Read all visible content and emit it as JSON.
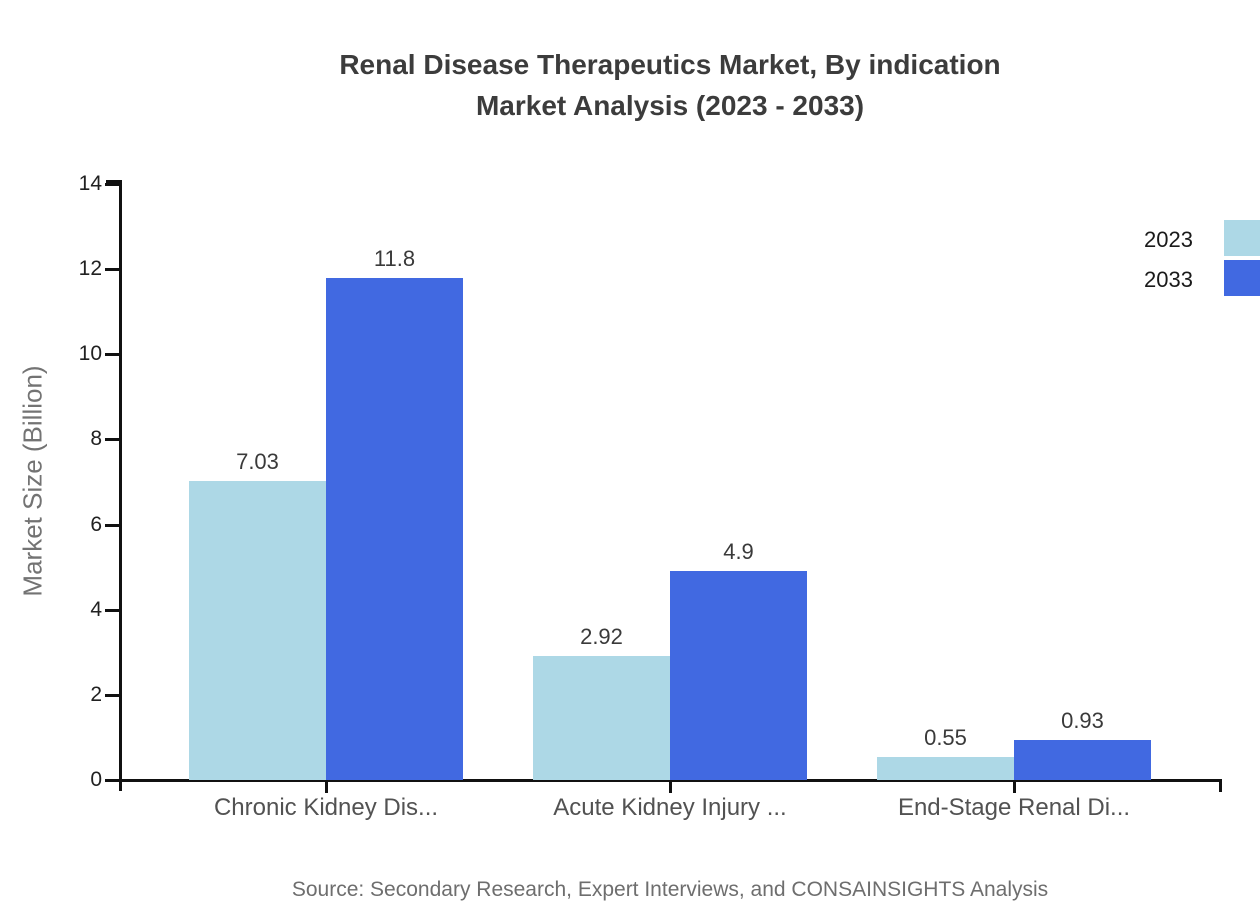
{
  "title": {
    "line1": "Renal Disease Therapeutics Market, By indication",
    "line2": "Market Analysis (2023 - 2033)"
  },
  "source_note": "Source: Secondary Research, Expert Interviews, and CONSAINSIGHTS Analysis",
  "legend": [
    {
      "label": "2023",
      "color": "#ADD8E6"
    },
    {
      "label": "2033",
      "color": "#4169E1"
    }
  ],
  "colors": {
    "series_2023": "#ADD8E6",
    "series_2033": "#4169E1",
    "axis": "#111111",
    "title_text": "#3c3c3c",
    "category_text": "#525252",
    "value_text": "#3a3a3a",
    "muted_text": "#6e6e6e"
  },
  "chart_data": {
    "type": "bar",
    "title": "Renal Disease Therapeutics Market, By indication Market Analysis (2023 - 2033)",
    "categories": [
      "Chronic Kidney Dis...",
      "Acute Kidney Injury ...",
      "End-Stage Renal Di..."
    ],
    "series": [
      {
        "name": "2023",
        "color": "#ADD8E6",
        "values": [
          7.03,
          2.92,
          0.55
        ],
        "labels": [
          "7.03",
          "2.92",
          "0.55"
        ]
      },
      {
        "name": "2033",
        "color": "#4169E1",
        "values": [
          11.8,
          4.9,
          0.93
        ],
        "labels": [
          "11.8",
          "4.9",
          "0.93"
        ]
      }
    ],
    "xlabel": "",
    "ylabel": "Market Size (Billion)",
    "ylim": [
      0,
      14
    ],
    "yticks": [
      0,
      2,
      4,
      6,
      8,
      10,
      12,
      14
    ],
    "grid": false,
    "legend_position": "top-right",
    "value_labels_shown": true
  }
}
